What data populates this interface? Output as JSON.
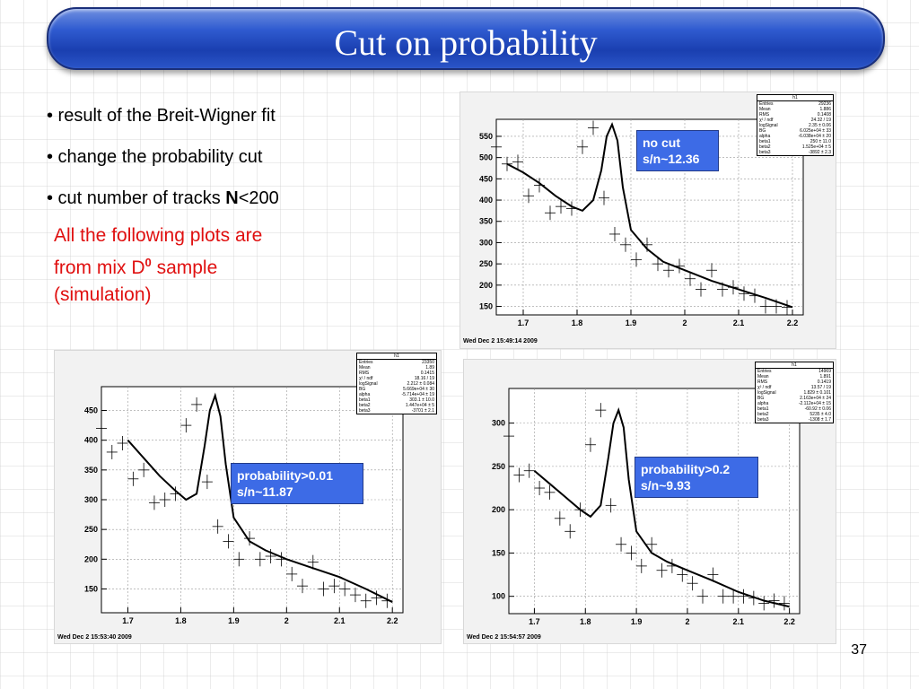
{
  "slide": {
    "title": "Cut on probability",
    "bullets": [
      {
        "prefix": "• result of the Breit-Wigner fit"
      },
      {
        "prefix": "• change the probability cut"
      },
      {
        "prefix": "• cut number of tracks ",
        "bold": "N",
        "suffix": "<200"
      }
    ],
    "note_line1": "All the following plots are",
    "note_line2_prefix": "from mix D",
    "note_sup": "0",
    "note_line2_suffix": " sample",
    "note_line3": "(simulation)",
    "page_number": "37"
  },
  "plots": [
    {
      "label1": "no cut",
      "label2": "s/n~12.36",
      "timestamp": "Wed Dec  2 15:49:14 2009",
      "stats": {
        "title": "h1",
        "rows": [
          [
            "Entries",
            "29236"
          ],
          [
            "Mean",
            "1.886"
          ],
          [
            "RMS",
            "0.1408"
          ],
          [
            "χ² / ndf",
            "24.32 / 19"
          ],
          [
            "logSignal",
            "2.35 ± 0.06"
          ],
          [
            "BG",
            "6.025e+04 ± 33"
          ],
          [
            "alpha",
            "-6.038e+04 ± 20"
          ],
          [
            "beta1",
            "250 ± 11.0"
          ],
          [
            "beta2",
            "1.525e+04 ± 5"
          ],
          [
            "beta3",
            "-3892 ± 2.3"
          ]
        ]
      }
    },
    {
      "label1": "probability>0.01",
      "label2": "s/n~11.87",
      "timestamp": "Wed Dec  2 15:53:40 2009",
      "stats": {
        "title": "h1",
        "rows": [
          [
            "Entries",
            "23350"
          ],
          [
            "Mean",
            "1.89"
          ],
          [
            "RMS",
            "0.1415"
          ],
          [
            "χ² / ndf",
            "18.16 / 19"
          ],
          [
            "logSignal",
            "2.212 ± 0.084"
          ],
          [
            "BG",
            "5.669e+04 ± 30"
          ],
          [
            "alpha",
            "-5.714e+04 ± 19"
          ],
          [
            "beta1",
            "303.1 ± 10.0"
          ],
          [
            "beta2",
            "1.447e+04 ± 5"
          ],
          [
            "beta3",
            "-3701 ± 2.1"
          ]
        ]
      }
    },
    {
      "label1": "probability>0.2",
      "label2": "s/n~9.93",
      "timestamp": "Wed Dec  2 15:54:57 2009",
      "stats": {
        "title": "h1",
        "rows": [
          [
            "Entries",
            "14969"
          ],
          [
            "Mean",
            "1.891"
          ],
          [
            "RMS",
            "0.1419"
          ],
          [
            "χ² / ndf",
            "13.57 / 19"
          ],
          [
            "logSignal",
            "1.829 ± 0.101"
          ],
          [
            "BG",
            "2.163e+04 ± 24"
          ],
          [
            "alpha",
            "-2.112e+04 ± 15"
          ],
          [
            "beta1",
            "-60.92 ± 0.06"
          ],
          [
            "beta2",
            "5235 ± 4.0"
          ],
          [
            "beta3",
            "-1308 ± 1.7"
          ]
        ]
      }
    }
  ],
  "chart_data": [
    {
      "type": "scatter",
      "title": "",
      "xlim": [
        1.65,
        2.22
      ],
      "ylim": [
        130,
        590
      ],
      "x_ticks": [
        "1.7",
        "1.8",
        "1.9",
        "2",
        "2.1",
        "2.2"
      ],
      "y_ticks": [
        "150",
        "200",
        "250",
        "300",
        "350",
        "400",
        "450",
        "500",
        "550"
      ],
      "points": {
        "x": [
          1.65,
          1.67,
          1.69,
          1.71,
          1.73,
          1.75,
          1.77,
          1.79,
          1.81,
          1.83,
          1.85,
          1.87,
          1.89,
          1.91,
          1.93,
          1.95,
          1.97,
          1.99,
          2.01,
          2.03,
          2.05,
          2.07,
          2.09,
          2.11,
          2.13,
          2.15,
          2.17,
          2.19
        ],
        "y": [
          525,
          485,
          490,
          410,
          435,
          370,
          385,
          380,
          525,
          570,
          405,
          320,
          295,
          260,
          295,
          250,
          235,
          245,
          215,
          190,
          235,
          190,
          195,
          180,
          175,
          150,
          150,
          148
        ]
      },
      "fit": {
        "x": [
          1.67,
          1.7,
          1.73,
          1.76,
          1.79,
          1.81,
          1.83,
          1.845,
          1.855,
          1.865,
          1.875,
          1.885,
          1.9,
          1.93,
          1.96,
          2,
          2.05,
          2.1,
          2.15,
          2.2
        ],
        "y": [
          485,
          465,
          440,
          410,
          385,
          375,
          400,
          470,
          550,
          578,
          540,
          430,
          330,
          285,
          255,
          235,
          210,
          190,
          170,
          148
        ]
      }
    },
    {
      "type": "scatter",
      "title": "",
      "xlim": [
        1.65,
        2.22
      ],
      "ylim": [
        110,
        490
      ],
      "x_ticks": [
        "1.7",
        "1.8",
        "1.9",
        "2",
        "2.1",
        "2.2"
      ],
      "y_ticks": [
        "150",
        "200",
        "250",
        "300",
        "350",
        "400",
        "450"
      ],
      "points": {
        "x": [
          1.65,
          1.67,
          1.69,
          1.71,
          1.73,
          1.75,
          1.77,
          1.79,
          1.81,
          1.83,
          1.85,
          1.87,
          1.89,
          1.91,
          1.93,
          1.95,
          1.97,
          1.99,
          2.01,
          2.03,
          2.05,
          2.07,
          2.09,
          2.11,
          2.13,
          2.15,
          2.17,
          2.19
        ],
        "y": [
          420,
          380,
          395,
          335,
          350,
          295,
          300,
          310,
          425,
          460,
          330,
          255,
          230,
          200,
          235,
          200,
          205,
          200,
          175,
          155,
          195,
          150,
          155,
          150,
          140,
          130,
          135,
          130
        ]
      },
      "fit": {
        "x": [
          1.7,
          1.73,
          1.76,
          1.79,
          1.81,
          1.83,
          1.845,
          1.855,
          1.865,
          1.875,
          1.885,
          1.9,
          1.93,
          1.96,
          2,
          2.05,
          2.1,
          2.15,
          2.2
        ],
        "y": [
          400,
          370,
          340,
          315,
          300,
          310,
          390,
          450,
          475,
          440,
          360,
          270,
          230,
          215,
          200,
          185,
          170,
          150,
          128
        ]
      }
    },
    {
      "type": "scatter",
      "title": "",
      "xlim": [
        1.65,
        2.22
      ],
      "ylim": [
        80,
        340
      ],
      "x_ticks": [
        "1.7",
        "1.8",
        "1.9",
        "2",
        "2.1",
        "2.2"
      ],
      "y_ticks": [
        "100",
        "150",
        "200",
        "250",
        "300"
      ],
      "points": {
        "x": [
          1.65,
          1.67,
          1.69,
          1.71,
          1.73,
          1.75,
          1.77,
          1.79,
          1.81,
          1.83,
          1.85,
          1.87,
          1.89,
          1.91,
          1.93,
          1.95,
          1.97,
          1.99,
          2.01,
          2.03,
          2.05,
          2.07,
          2.09,
          2.11,
          2.13,
          2.15,
          2.17,
          2.19
        ],
        "y": [
          285,
          240,
          245,
          225,
          220,
          190,
          175,
          200,
          275,
          315,
          205,
          160,
          150,
          135,
          160,
          130,
          135,
          125,
          115,
          100,
          125,
          100,
          100,
          100,
          98,
          92,
          95,
          92
        ]
      },
      "fit": {
        "x": [
          1.7,
          1.73,
          1.76,
          1.79,
          1.81,
          1.83,
          1.845,
          1.855,
          1.865,
          1.875,
          1.885,
          1.9,
          1.93,
          1.96,
          2,
          2.05,
          2.1,
          2.15,
          2.2
        ],
        "y": [
          245,
          230,
          215,
          200,
          192,
          205,
          260,
          300,
          315,
          295,
          235,
          175,
          150,
          140,
          130,
          118,
          105,
          95,
          88
        ]
      }
    }
  ]
}
